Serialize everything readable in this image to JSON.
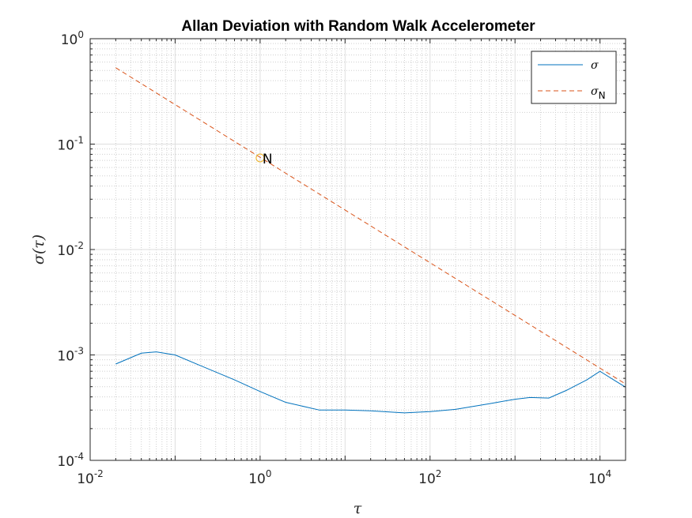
{
  "chart_data": {
    "type": "line",
    "title": "Allan Deviation with Random Walk Accelerometer",
    "xlabel": "τ",
    "ylabel": "σ(τ)",
    "xscale": "log",
    "yscale": "log",
    "xlim": [
      0.01,
      20000
    ],
    "ylim": [
      0.0001,
      1
    ],
    "grid": true,
    "minor_grid": true,
    "legend_position": "top-right",
    "x_ticks": [
      {
        "base": "10",
        "exp": "-2",
        "value": 0.01
      },
      {
        "base": "10",
        "exp": "0",
        "value": 1
      },
      {
        "base": "10",
        "exp": "2",
        "value": 100
      },
      {
        "base": "10",
        "exp": "4",
        "value": 10000
      }
    ],
    "y_ticks": [
      {
        "base": "10",
        "exp": "0",
        "value": 1
      },
      {
        "base": "10",
        "exp": "-1",
        "value": 0.1
      },
      {
        "base": "10",
        "exp": "-2",
        "value": 0.01
      },
      {
        "base": "10",
        "exp": "-3",
        "value": 0.001
      },
      {
        "base": "10",
        "exp": "-4",
        "value": 0.0001
      }
    ],
    "series": [
      {
        "name": "σ",
        "color": "#0072BD",
        "style": "solid",
        "x": [
          0.02,
          0.04,
          0.06,
          0.1,
          0.2,
          0.5,
          1,
          2,
          5,
          10,
          20,
          50,
          100,
          200,
          500,
          1000,
          1500,
          2500,
          4000,
          7000,
          10000,
          15000,
          20000
        ],
        "y": [
          0.00082,
          0.00104,
          0.00107,
          0.001,
          0.00079,
          0.00058,
          0.00045,
          0.000355,
          0.0003,
          0.0003,
          0.000295,
          0.000282,
          0.00029,
          0.000305,
          0.000345,
          0.00038,
          0.000395,
          0.00039,
          0.00046,
          0.00058,
          0.0007,
          0.00057,
          0.000495
        ]
      },
      {
        "name": "σN",
        "color": "#D95319",
        "style": "dashed",
        "x": [
          0.02,
          20000
        ],
        "y": [
          0.53,
          0.00053
        ]
      }
    ],
    "legend": [
      {
        "symbol": "σ",
        "subscript": "",
        "color": "#0072BD",
        "style": "solid"
      },
      {
        "symbol": "σ",
        "subscript": "N",
        "color": "#D95319",
        "style": "dashed"
      }
    ],
    "annotations": [
      {
        "text": "N",
        "x": 1,
        "y": 0.074,
        "marker": "circle",
        "marker_color": "#EDB120"
      }
    ]
  }
}
